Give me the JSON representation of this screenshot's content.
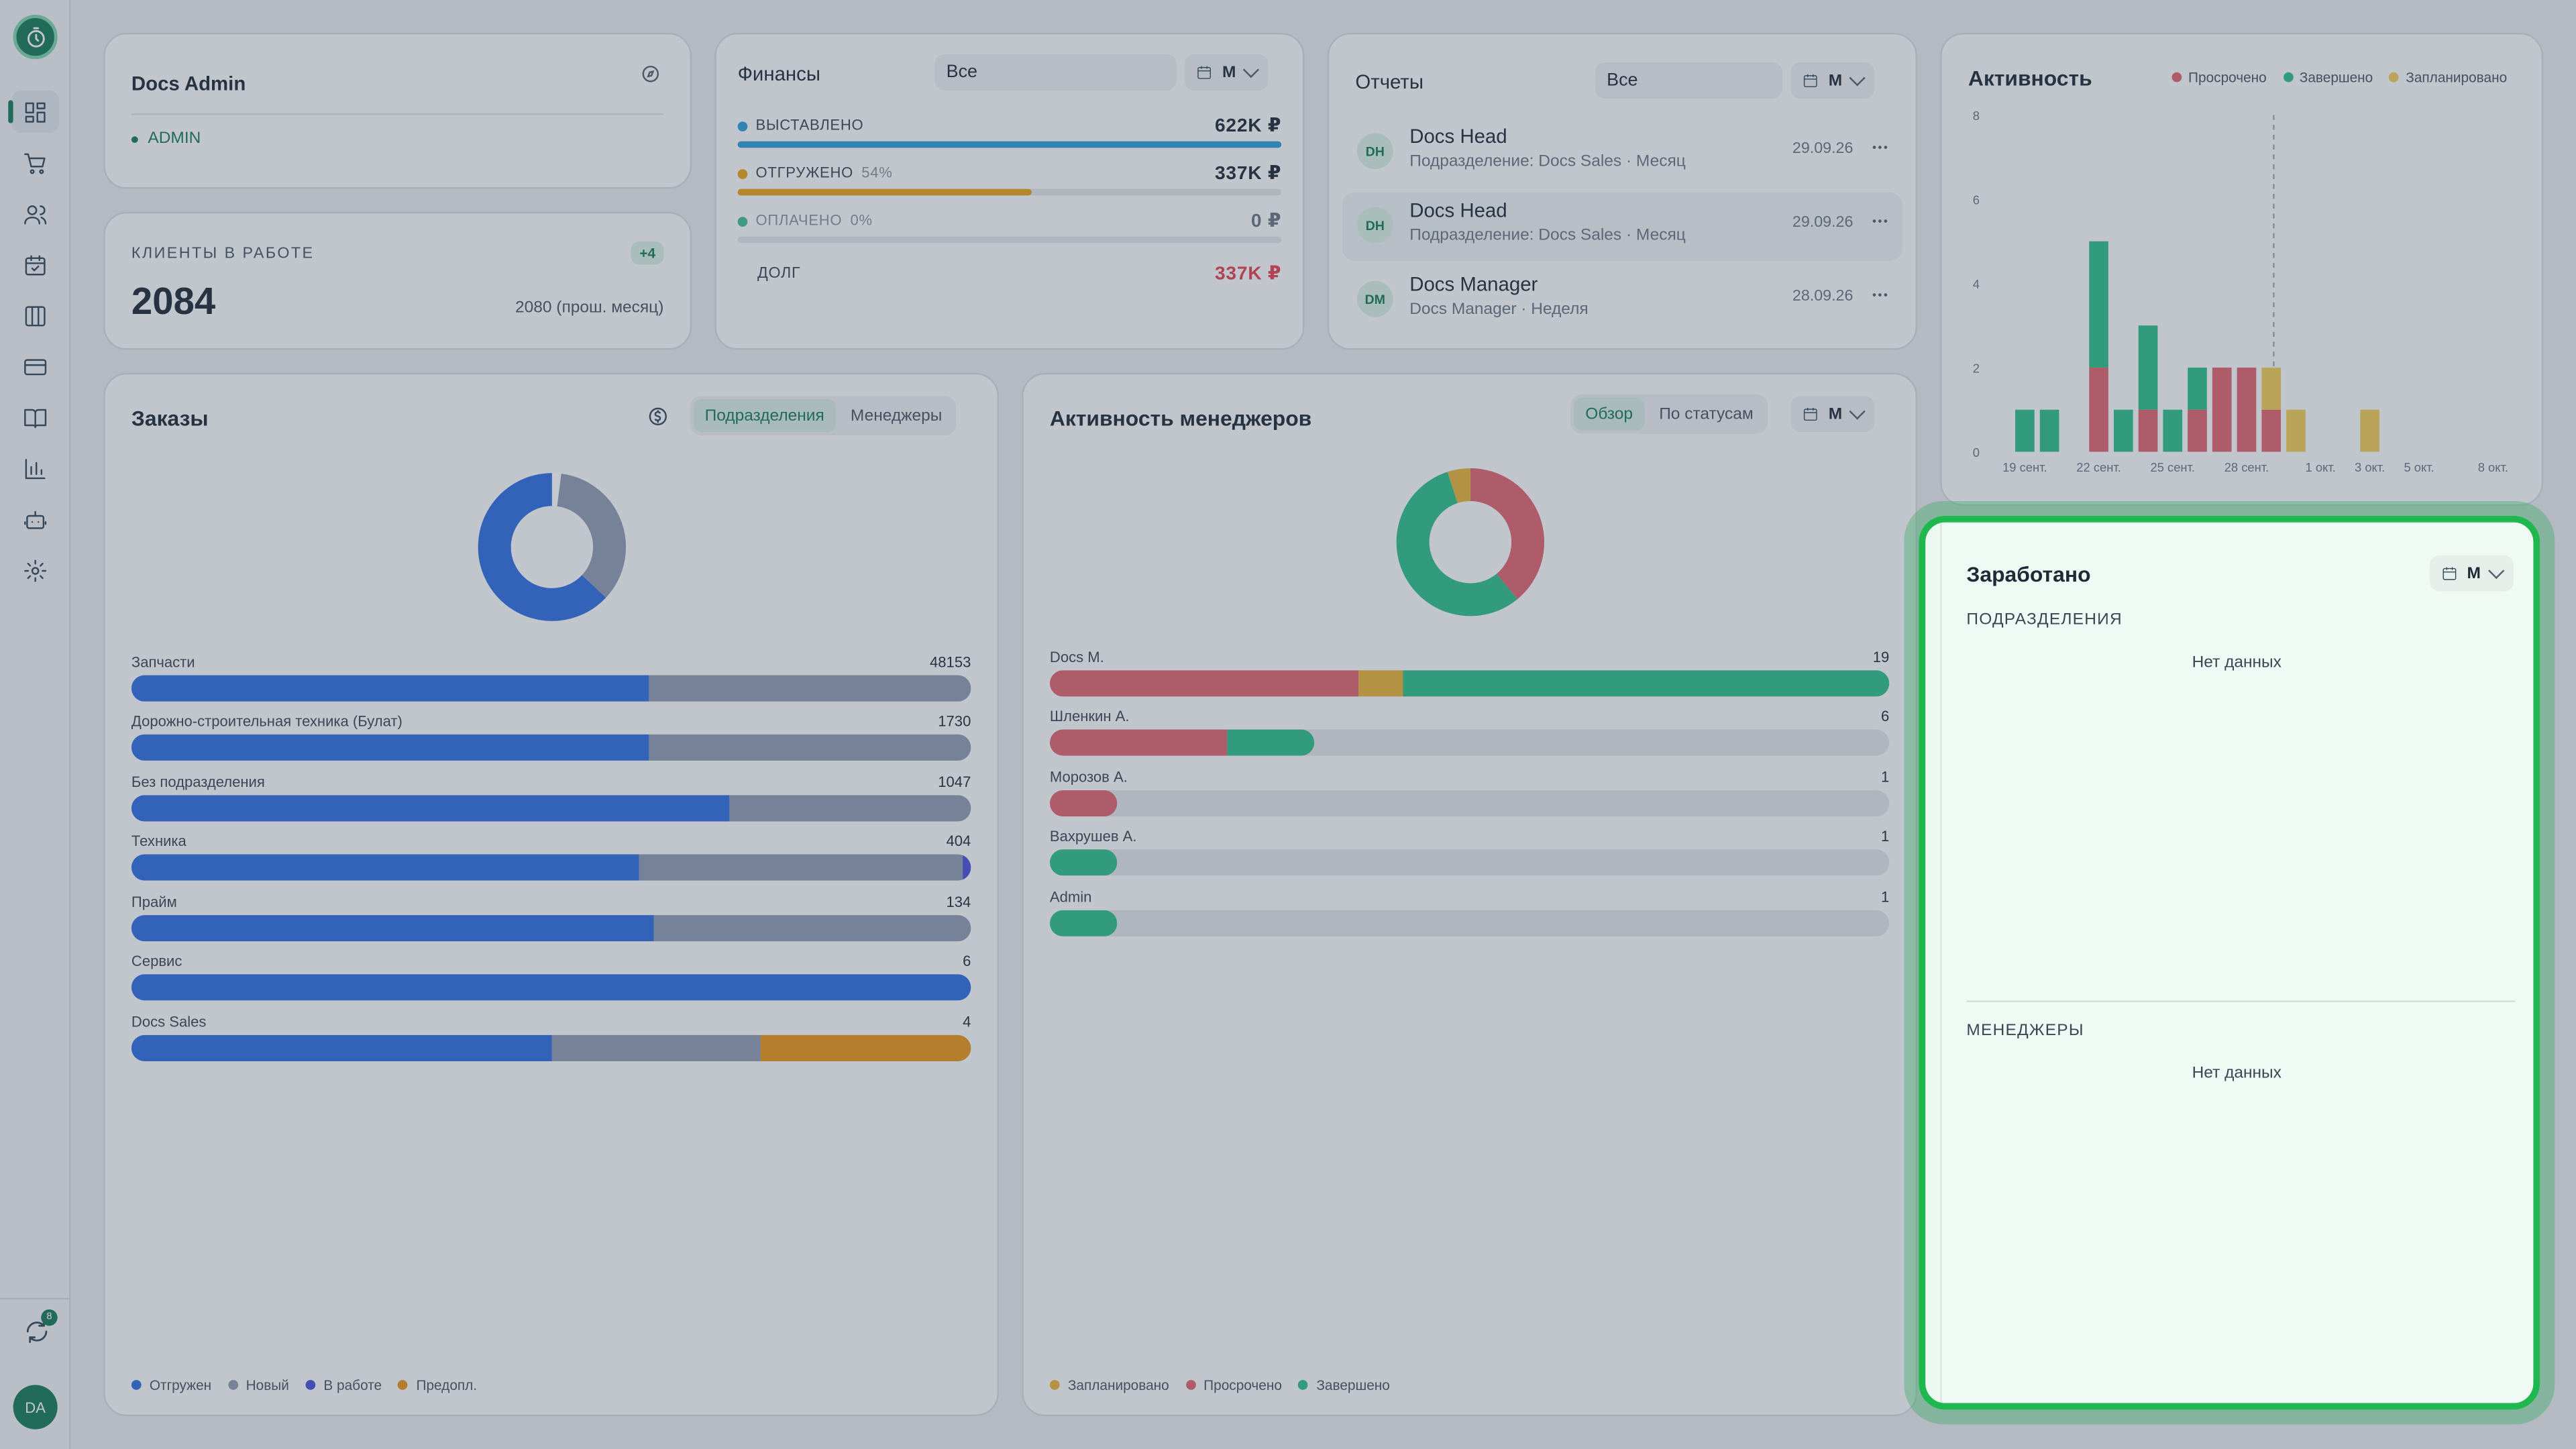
{
  "sidebar": {
    "logo_icon": "stopwatch-icon",
    "items": [
      {
        "name": "dashboard",
        "icon": "grid-icon",
        "active": true
      },
      {
        "name": "orders",
        "icon": "cart-icon"
      },
      {
        "name": "clients",
        "icon": "users-icon"
      },
      {
        "name": "calendar",
        "icon": "calendar-icon"
      },
      {
        "name": "boards",
        "icon": "columns-icon"
      },
      {
        "name": "payments",
        "icon": "card-icon"
      },
      {
        "name": "docs",
        "icon": "book-icon"
      },
      {
        "name": "reports",
        "icon": "chart-icon"
      },
      {
        "name": "bots",
        "icon": "robot-icon"
      },
      {
        "name": "settings",
        "icon": "gear-icon"
      }
    ],
    "sync_badge": "8",
    "avatar_initials": "DA"
  },
  "profile": {
    "name": "Docs Admin",
    "role": "ADMIN"
  },
  "clients": {
    "label": "КЛИЕНТЫ В РАБОТЕ",
    "badge": "+4",
    "value": "2084",
    "prev": "2080 (прош. месяц)"
  },
  "finance": {
    "title": "Финансы",
    "filter": "Все",
    "period": "М",
    "rows": [
      {
        "label": "ВЫСТАВЛЕНО",
        "pct": "",
        "value": "622K ₽",
        "color": "#2f9ed8",
        "fill": 1.0
      },
      {
        "label": "ОТГРУЖЕНО",
        "pct": "54%",
        "value": "337K ₽",
        "color": "#e8a317",
        "fill": 0.54
      },
      {
        "label": "ОПЛАЧЕНО",
        "pct": "0%",
        "value": "0 ₽",
        "color": "#3fbf8e",
        "fill": 0.0
      }
    ],
    "debt_label": "ДОЛГ",
    "debt_value": "337K ₽"
  },
  "reports": {
    "title": "Отчеты",
    "filter": "Все",
    "period": "М",
    "items": [
      {
        "initials": "DH",
        "name": "Docs Head",
        "sub": "Подразделение: Docs Sales · Месяц",
        "date": "29.09.26"
      },
      {
        "initials": "DH",
        "name": "Docs Head",
        "sub": "Подразделение: Docs Sales · Месяц",
        "date": "29.09.26"
      },
      {
        "initials": "DM",
        "name": "Docs Manager",
        "sub": "Docs Manager · Неделя",
        "date": "28.09.26"
      }
    ]
  },
  "activity": {
    "title": "Активность",
    "legend": [
      "Просрочено",
      "Завершено",
      "Запланировано"
    ]
  },
  "orders": {
    "title": "Заказы",
    "tabs": [
      "Подразделения",
      "Менеджеры"
    ],
    "active_tab": 0,
    "legend": [
      {
        "label": "Отгружен",
        "color": "#2f6fe0"
      },
      {
        "label": "Новый",
        "color": "#8e9bb0"
      },
      {
        "label": "В работе",
        "color": "#4b4fd8"
      },
      {
        "label": "Предопл.",
        "color": "#e8951a"
      }
    ],
    "rows": [
      {
        "label": "Запчасти",
        "value": "48153",
        "segs": [
          0.616,
          0.384,
          0,
          0
        ]
      },
      {
        "label": "Дорожно-строительная техника (Булат)",
        "value": "1730",
        "segs": [
          0.616,
          0.384,
          0,
          0
        ]
      },
      {
        "label": "Без подразделения",
        "value": "1047",
        "segs": [
          0.713,
          0.287,
          0,
          0
        ]
      },
      {
        "label": "Техника",
        "value": "404",
        "segs": [
          0.604,
          0.386,
          0.01,
          0
        ]
      },
      {
        "label": "Прайм",
        "value": "134",
        "segs": [
          0.622,
          0.378,
          0,
          0
        ]
      },
      {
        "label": "Сервис",
        "value": "6",
        "segs": [
          1,
          0,
          0,
          0
        ]
      },
      {
        "label": "Docs Sales",
        "value": "4",
        "segs": [
          0.5,
          0.25,
          0,
          0.25
        ]
      }
    ],
    "donut": [
      0.63,
      0.37
    ]
  },
  "managers": {
    "title": "Активность менеджеров",
    "tabs": [
      "Обзор",
      "По статусам"
    ],
    "active_tab": 0,
    "period": "М",
    "legend": [
      {
        "label": "Запланировано",
        "color": "#e8b23a"
      },
      {
        "label": "Просрочено",
        "color": "#e06470"
      },
      {
        "label": "Завершено",
        "color": "#2fbf8a"
      }
    ],
    "rows": [
      {
        "label": "Docs M.",
        "value": "19",
        "segs": [
          0.368,
          0.053,
          0.579
        ],
        "fill": 1.0
      },
      {
        "label": "Шленкин А.",
        "value": "6",
        "segs": [
          0.667,
          0,
          0.333
        ],
        "fill": 0.316
      },
      {
        "label": "Морозов А.",
        "value": "1",
        "segs": [
          1,
          0,
          0
        ],
        "fill": 0.08
      },
      {
        "label": "Вахрушев А.",
        "value": "1",
        "segs": [
          0,
          0,
          1
        ],
        "fill": 0.08
      },
      {
        "label": "Admin",
        "value": "1",
        "segs": [
          0,
          0,
          1
        ],
        "fill": 0.08
      }
    ],
    "donut": [
      {
        "v": 0.05,
        "c": "#e8b23a"
      },
      {
        "v": 0.39,
        "c": "#e06470"
      },
      {
        "v": 0.56,
        "c": "#2fbf8a"
      }
    ]
  },
  "earned": {
    "title": "Заработано",
    "period": "М",
    "sections": [
      {
        "label": "ПОДРАЗДЕЛЕНИЯ",
        "empty": "Нет данных"
      },
      {
        "label": "МЕНЕДЖЕРЫ",
        "empty": "Нет данных"
      }
    ]
  },
  "chart_data": {
    "type": "bar",
    "title": "Активность",
    "stacked": true,
    "categories": [
      "19 сент.",
      "20 сент.",
      "21 сент.",
      "22 сент.",
      "23 сент.",
      "24 сент.",
      "25 сент.",
      "26 сент.",
      "27 сент.",
      "28 сент.",
      "29 сент.",
      "30 сент.",
      "1 окт.",
      "2 окт.",
      "3 окт.",
      "4 окт.",
      "5 окт.",
      "6 окт.",
      "7 окт.",
      "8 окт."
    ],
    "x_tick_labels": [
      "19 сент.",
      "22 сент.",
      "25 сент.",
      "28 сент.",
      "1 окт.",
      "3 окт.",
      "5 окт.",
      "8 окт."
    ],
    "series": [
      {
        "name": "Просрочено",
        "color": "#e06470",
        "values": [
          0,
          0,
          0,
          2,
          0,
          1,
          0,
          1,
          2,
          2,
          1,
          0,
          0,
          0,
          0,
          0,
          0,
          0,
          0,
          0
        ]
      },
      {
        "name": "Завершено",
        "color": "#2fbf8a",
        "values": [
          1,
          1,
          0,
          3,
          1,
          2,
          1,
          1,
          0,
          0,
          0,
          0,
          0,
          0,
          0,
          0,
          0,
          0,
          0,
          0
        ]
      },
      {
        "name": "Запланировано",
        "color": "#f0cc5a",
        "values": [
          0,
          0,
          0,
          0,
          0,
          0,
          0,
          0,
          0,
          0,
          1,
          1,
          0,
          0,
          1,
          0,
          0,
          0,
          0,
          0
        ]
      }
    ],
    "ylim": [
      0,
      8
    ],
    "yticks": [
      0,
      2,
      4,
      6,
      8
    ],
    "grid": false,
    "legend": "top-right",
    "today_marker": "28 сент."
  }
}
